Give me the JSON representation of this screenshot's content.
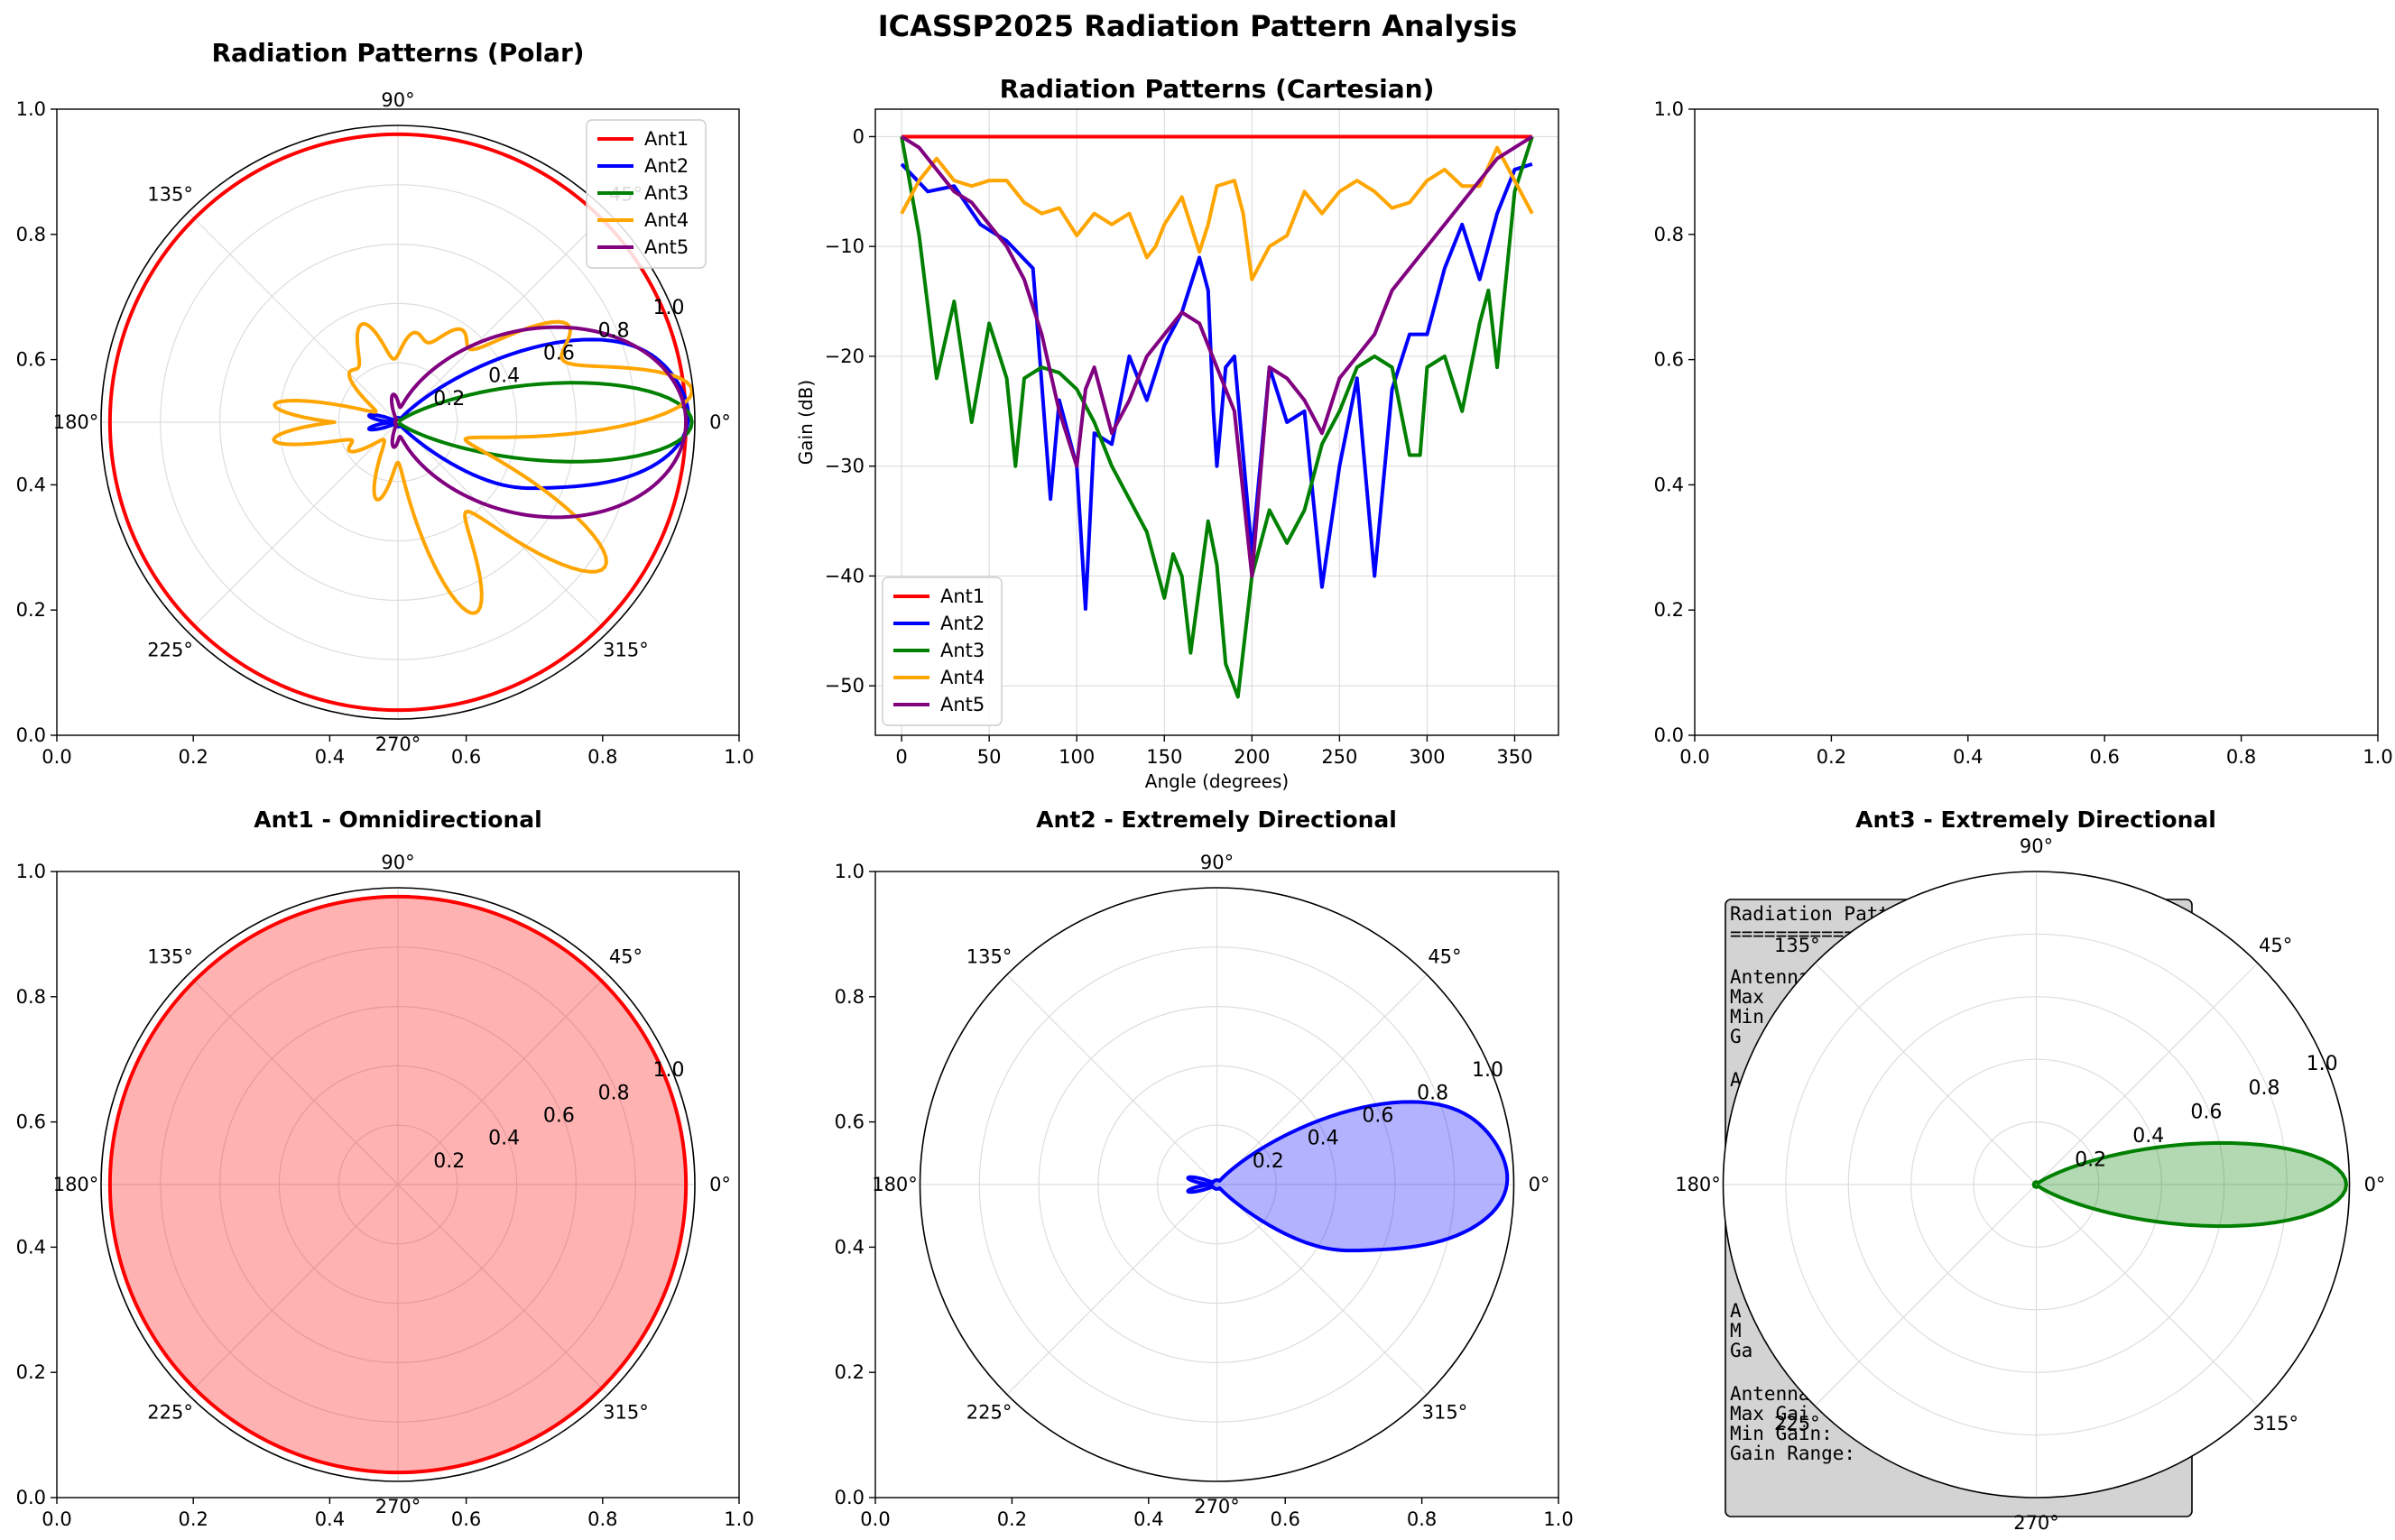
{
  "figure": {
    "title": "ICASSP2025 Radiation Pattern Analysis",
    "colors": {
      "Ant1": "#ff0000",
      "Ant2": "#0000ff",
      "Ant3": "#008000",
      "Ant4": "#ffa500",
      "Ant5": "#800080"
    },
    "grid_color": "#dddddd",
    "textbox_bg": "#d3d3d3"
  },
  "chart_data": [
    {
      "panel": "polar-overview",
      "type": "line",
      "title": "Radiation Patterns (Polar)",
      "projection": "polar",
      "angle_ticks": [
        "0°",
        "45°",
        "90°",
        "135°",
        "180°",
        "225°",
        "270°",
        "315°"
      ],
      "radial_ticks": [
        "0.2",
        "0.4",
        "0.6",
        "0.8",
        "1.0"
      ],
      "rlim": [
        0,
        1.0
      ],
      "outer_cartesian_ticks": [
        "0.0",
        "0.2",
        "0.4",
        "0.6",
        "0.8",
        "1.0"
      ],
      "legend": [
        "Ant1",
        "Ant2",
        "Ant3",
        "Ant4",
        "Ant5"
      ],
      "legend_position": "top-right",
      "grid": true,
      "series": [
        {
          "name": "Ant1",
          "shape": "omni",
          "r": 0.97
        },
        {
          "name": "Ant2",
          "shape": "directional-with-sidelobes",
          "main_lobe_deg": 0,
          "peak_r": 0.96
        },
        {
          "name": "Ant3",
          "shape": "narrow-beam",
          "main_lobe_deg": 0,
          "peak_r": 0.99,
          "beamwidth_deg": 20
        },
        {
          "name": "Ant4",
          "shape": "multi-lobe",
          "lobe_angles_deg": [
            0,
            30,
            110,
            180,
            250,
            320
          ],
          "peak_r": 0.93
        },
        {
          "name": "Ant5",
          "shape": "directional",
          "main_lobe_deg": 0,
          "peak_r": 0.97,
          "beamwidth_deg": 70
        }
      ]
    },
    {
      "panel": "cartesian-overview",
      "type": "line",
      "title": "Radiation Patterns (Cartesian)",
      "xlabel": "Angle (degrees)",
      "ylabel": "Gain (dB)",
      "xlim": [
        -15,
        375
      ],
      "ylim": [
        -54.5,
        2.5
      ],
      "xticks": [
        0,
        50,
        100,
        150,
        200,
        250,
        300,
        350
      ],
      "yticks": [
        0,
        -10,
        -20,
        -30,
        -40,
        -50
      ],
      "legend": [
        "Ant1",
        "Ant2",
        "Ant3",
        "Ant4",
        "Ant5"
      ],
      "legend_position": "bottom-left",
      "grid": true,
      "series": [
        {
          "name": "Ant1",
          "x": [
            0,
            360
          ],
          "y": [
            0,
            0
          ]
        },
        {
          "name": "Ant2",
          "x": [
            0,
            15,
            30,
            45,
            60,
            75,
            85,
            90,
            100,
            105,
            110,
            120,
            130,
            140,
            150,
            160,
            170,
            175,
            178,
            180,
            185,
            190,
            200,
            210,
            220,
            230,
            240,
            250,
            260,
            270,
            280,
            290,
            300,
            310,
            320,
            330,
            340,
            350,
            360
          ],
          "y": [
            -2.5,
            -5,
            -4.5,
            -8,
            -9.5,
            -12,
            -33,
            -24,
            -30,
            -43,
            -27,
            -28,
            -20,
            -24,
            -19,
            -16,
            -11,
            -14,
            -25,
            -30,
            -21,
            -20,
            -38,
            -21,
            -26,
            -25,
            -41,
            -30,
            -22,
            -40,
            -23,
            -18,
            -18,
            -12,
            -8,
            -13,
            -7,
            -3,
            -2.5
          ]
        },
        {
          "name": "Ant3",
          "x": [
            0,
            10,
            20,
            30,
            40,
            50,
            60,
            65,
            70,
            80,
            90,
            100,
            110,
            120,
            130,
            140,
            150,
            155,
            160,
            165,
            175,
            180,
            185,
            192,
            200,
            210,
            220,
            230,
            240,
            250,
            260,
            270,
            280,
            290,
            296,
            300,
            310,
            320,
            325,
            330,
            335,
            340,
            350,
            360
          ],
          "y": [
            0,
            -9,
            -22,
            -15,
            -26,
            -17,
            -22,
            -30,
            -22,
            -21,
            -21.5,
            -23,
            -26,
            -30,
            -33,
            -36,
            -42,
            -38,
            -40,
            -47,
            -35,
            -39,
            -48,
            -51,
            -40,
            -34,
            -37,
            -34,
            -28,
            -25,
            -21,
            -20,
            -21,
            -29,
            -29,
            -21,
            -20,
            -25,
            -21,
            -17,
            -14,
            -21,
            -5,
            0
          ]
        },
        {
          "name": "Ant4",
          "x": [
            0,
            10,
            20,
            30,
            40,
            50,
            60,
            70,
            80,
            90,
            100,
            110,
            120,
            130,
            140,
            145,
            150,
            160,
            165,
            170,
            175,
            180,
            190,
            195,
            200,
            210,
            220,
            230,
            240,
            250,
            260,
            270,
            280,
            290,
            300,
            310,
            320,
            330,
            340,
            350,
            360
          ],
          "y": [
            -7,
            -4,
            -2,
            -4,
            -4.5,
            -4,
            -4,
            -6,
            -7,
            -6.5,
            -9,
            -7,
            -8,
            -7,
            -11,
            -10,
            -8,
            -5.5,
            -8,
            -10.5,
            -8,
            -4.5,
            -4,
            -7,
            -13,
            -10,
            -9,
            -5,
            -7,
            -5,
            -4,
            -5,
            -6.5,
            -6,
            -4,
            -3,
            -4.5,
            -4.5,
            -1,
            -4,
            -7
          ]
        },
        {
          "name": "Ant5",
          "x": [
            0,
            10,
            20,
            30,
            40,
            50,
            60,
            70,
            80,
            90,
            100,
            105,
            110,
            120,
            130,
            140,
            150,
            160,
            170,
            175,
            180,
            190,
            200,
            210,
            220,
            230,
            240,
            250,
            260,
            270,
            280,
            290,
            300,
            310,
            320,
            330,
            340,
            350,
            360
          ],
          "y": [
            0,
            -1,
            -3,
            -5,
            -6,
            -8,
            -10,
            -13,
            -18,
            -25,
            -30,
            -23,
            -21,
            -27,
            -24,
            -20,
            -18,
            -16,
            -17,
            -19,
            -21,
            -25,
            -40,
            -21,
            -22,
            -24,
            -27,
            -22,
            -20,
            -18,
            -14,
            -12,
            -10,
            -8,
            -6,
            -4,
            -2,
            -1,
            0
          ]
        }
      ]
    },
    {
      "panel": "empty",
      "type": "line",
      "xlim": [
        0,
        1
      ],
      "ylim": [
        0,
        1
      ],
      "xticks": [
        "0.0",
        "0.2",
        "0.4",
        "0.6",
        "0.8",
        "1.0"
      ],
      "yticks": [
        "0.0",
        "0.2",
        "0.4",
        "0.6",
        "0.8",
        "1.0"
      ],
      "series": []
    },
    {
      "panel": "ant1-polar",
      "type": "area",
      "title": "Ant1 - Omnidirectional",
      "projection": "polar",
      "angle_ticks": [
        "0°",
        "45°",
        "90°",
        "135°",
        "180°",
        "225°",
        "270°",
        "315°"
      ],
      "radial_ticks": [
        "0.2",
        "0.4",
        "0.6",
        "0.8",
        "1.0"
      ],
      "outer_cartesian_ticks": [
        "0.0",
        "0.2",
        "0.4",
        "0.6",
        "0.8",
        "1.0"
      ],
      "series": [
        {
          "name": "Ant1",
          "r": 0.97,
          "fill": true
        }
      ]
    },
    {
      "panel": "ant2-polar",
      "type": "area",
      "title": "Ant2 - Extremely Directional",
      "projection": "polar",
      "angle_ticks": [
        "0°",
        "45°",
        "90°",
        "135°",
        "180°",
        "225°",
        "270°",
        "315°"
      ],
      "radial_ticks": [
        "0.2",
        "0.4",
        "0.6",
        "0.8",
        "1.0"
      ],
      "outer_cartesian_ticks": [
        "0.0",
        "0.2",
        "0.4",
        "0.6",
        "0.8",
        "1.0"
      ],
      "series": [
        {
          "name": "Ant2",
          "main_lobe_deg": 0,
          "peak_r": 0.96,
          "fill": true
        }
      ]
    },
    {
      "panel": "ant3-polar",
      "type": "area",
      "title": "Ant3 - Extremely Directional",
      "projection": "polar",
      "angle_ticks": [
        "0°",
        "45°",
        "90°",
        "135°",
        "180°",
        "225°",
        "270°",
        "315°"
      ],
      "radial_ticks": [
        "0.2",
        "0.4",
        "0.6",
        "0.8",
        "1.0"
      ],
      "series": [
        {
          "name": "Ant3",
          "main_lobe_deg": 0,
          "peak_r": 0.99,
          "fill": true
        }
      ]
    }
  ],
  "textbox": {
    "lines": [
      "Radiation Patt",
      "==============",
      "Antenna",
      "  Max",
      "  Min",
      "  G",
      "A",
      "A",
      "  M",
      "  Ga",
      "Antenna",
      "  Max Gai",
      "  Min Gain:",
      "  Gain Range: "
    ]
  }
}
